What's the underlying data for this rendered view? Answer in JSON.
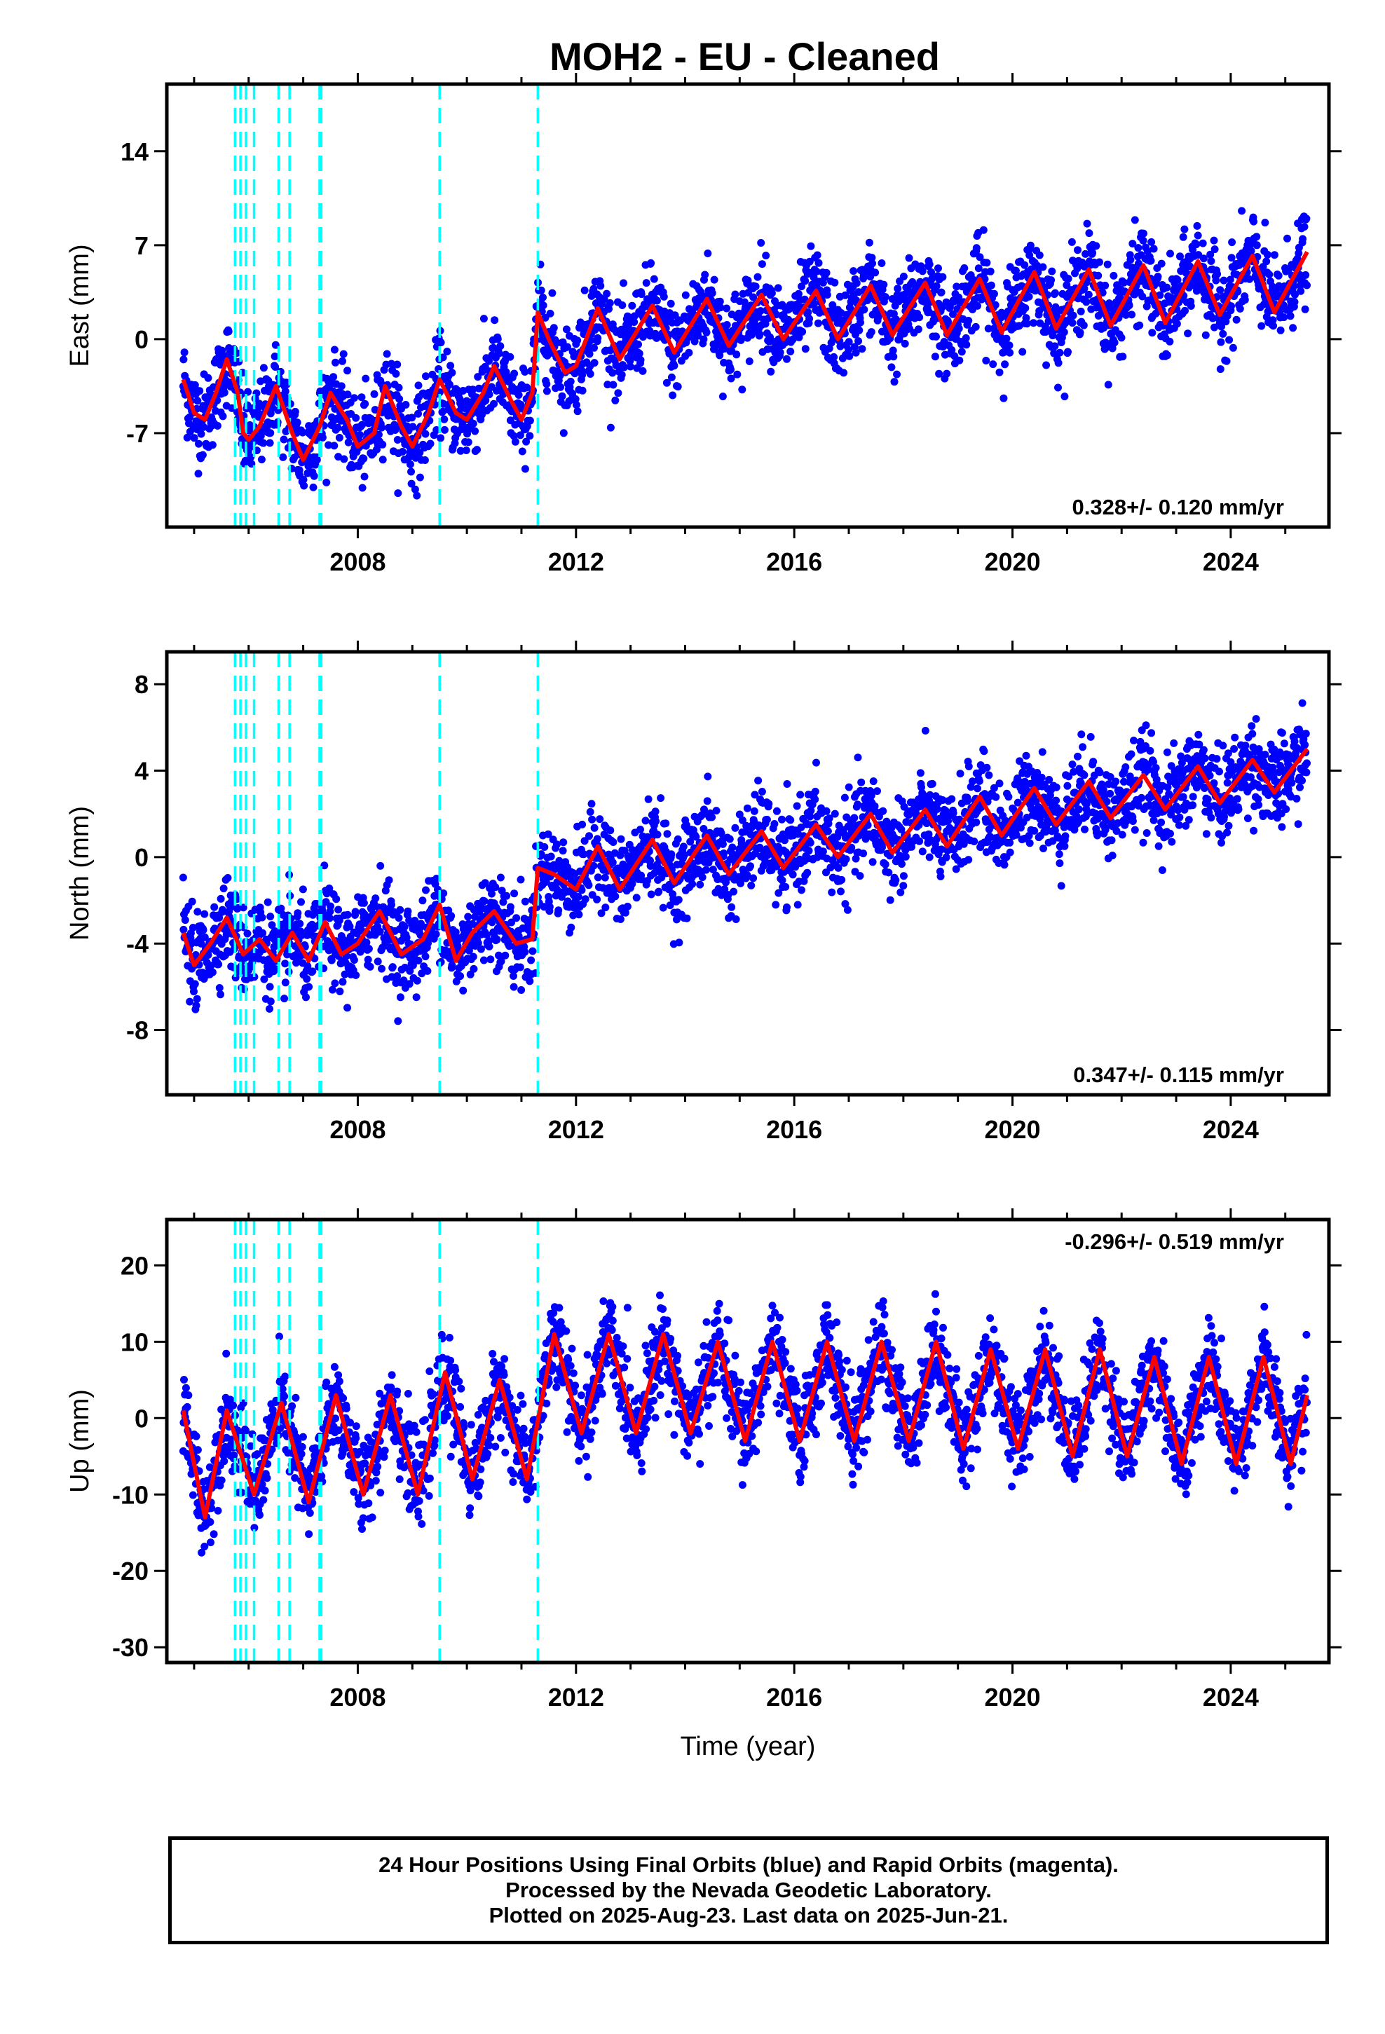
{
  "title": "MOH2  - EU - Cleaned",
  "footer": {
    "line1": "24 Hour Positions Using Final Orbits (blue) and Rapid Orbits (magenta).",
    "line2": "Processed by the Nevada Geodetic Laboratory.",
    "line3": "Plotted on 2025-Aug-23. Last data on 2025-Jun-21."
  },
  "colors": {
    "points": "#0000ff",
    "model": "#ff0000",
    "events": "#00ffff",
    "axes": "#000000"
  },
  "chart_data": [
    {
      "type": "scatter",
      "ylabel": "East (mm)",
      "xlabel": "",
      "xlim": [
        2004.5,
        2025.8
      ],
      "ylim": [
        -14,
        19
      ],
      "x_ticks": [
        2008,
        2012,
        2016,
        2020,
        2024
      ],
      "y_ticks": [
        -7,
        0,
        7,
        14
      ],
      "rate_label": "0.328+/- 0.120 mm/yr",
      "rate_position": "bottom-right",
      "events": [
        2005.75,
        2005.85,
        2005.95,
        2006.1,
        2006.55,
        2006.75,
        2007.3,
        2007.33,
        2009.5,
        2011.3
      ],
      "series": [
        {
          "x": [
            2004.8,
            2005.0,
            2005.2,
            2005.4,
            2005.6,
            2005.8,
            2005.9,
            2006.0,
            2006.2,
            2006.5,
            2006.8,
            2007.0,
            2007.3,
            2007.5,
            2007.8,
            2008.0,
            2008.3,
            2008.5,
            2008.8,
            2009.0,
            2009.3,
            2009.5,
            2009.8,
            2010.0,
            2010.3,
            2010.5,
            2010.8,
            2011.0,
            2011.2,
            2011.3,
            2011.5,
            2011.8,
            2012.0,
            2012.4,
            2012.8,
            2013.4,
            2013.8,
            2014.4,
            2014.8,
            2015.4,
            2015.8,
            2016.4,
            2016.8,
            2017.4,
            2017.8,
            2018.4,
            2018.8,
            2019.4,
            2019.8,
            2020.4,
            2020.8,
            2021.4,
            2021.8,
            2022.4,
            2022.8,
            2023.4,
            2023.8,
            2024.4,
            2024.8,
            2025.4
          ],
          "y": [
            -3,
            -5.5,
            -6,
            -4,
            -1.5,
            -4,
            -7,
            -7.5,
            -6.5,
            -3.5,
            -7,
            -9,
            -6.5,
            -4,
            -6,
            -8,
            -7,
            -3.5,
            -6.5,
            -8,
            -5.5,
            -3,
            -5.5,
            -6,
            -4,
            -2,
            -4.5,
            -6,
            -4,
            2,
            0,
            -2.5,
            -2,
            2.3,
            -1.5,
            2.5,
            -1,
            3,
            -0.5,
            3.3,
            0,
            3.6,
            0,
            4,
            0.3,
            4.2,
            0.3,
            4.5,
            0.5,
            5,
            0.8,
            5.2,
            1,
            5.5,
            1.2,
            5.8,
            1.8,
            6.2,
            2,
            6.5
          ]
        }
      ]
    },
    {
      "type": "scatter",
      "ylabel": "North (mm)",
      "xlabel": "",
      "xlim": [
        2004.5,
        2025.8
      ],
      "ylim": [
        -11,
        9.5
      ],
      "x_ticks": [
        2008,
        2012,
        2016,
        2020,
        2024
      ],
      "y_ticks": [
        -8,
        -4,
        0,
        4,
        8
      ],
      "rate_label": "0.347+/- 0.115 mm/yr",
      "rate_position": "bottom-right",
      "events": [
        2005.75,
        2005.85,
        2005.95,
        2006.1,
        2006.55,
        2006.75,
        2007.3,
        2007.33,
        2009.5,
        2011.3
      ],
      "series": [
        {
          "x": [
            2004.8,
            2005.0,
            2005.3,
            2005.6,
            2005.9,
            2006.2,
            2006.5,
            2006.8,
            2007.1,
            2007.4,
            2007.7,
            2008.0,
            2008.4,
            2008.8,
            2009.2,
            2009.5,
            2009.8,
            2010.1,
            2010.5,
            2010.9,
            2011.2,
            2011.3,
            2011.6,
            2012.0,
            2012.4,
            2012.8,
            2013.4,
            2013.8,
            2014.4,
            2014.8,
            2015.4,
            2015.8,
            2016.4,
            2016.8,
            2017.4,
            2017.8,
            2018.4,
            2018.8,
            2019.4,
            2019.8,
            2020.4,
            2020.8,
            2021.4,
            2021.8,
            2022.4,
            2022.8,
            2023.4,
            2023.8,
            2024.4,
            2024.8,
            2025.4
          ],
          "y": [
            -3.5,
            -5,
            -4,
            -2.8,
            -4.5,
            -3.8,
            -4.8,
            -3.5,
            -4.8,
            -3,
            -4.5,
            -4,
            -2.5,
            -4.5,
            -3.8,
            -2.2,
            -4.8,
            -3.5,
            -2.5,
            -4,
            -3.8,
            -0.5,
            -0.8,
            -1.5,
            0.5,
            -1.5,
            0.8,
            -1.2,
            1,
            -0.8,
            1.2,
            -0.5,
            1.5,
            0,
            2,
            0.2,
            2.2,
            0.5,
            2.8,
            1,
            3.2,
            1.5,
            3.5,
            1.8,
            3.8,
            2.2,
            4.2,
            2.5,
            4.5,
            3,
            5
          ]
        }
      ]
    },
    {
      "type": "scatter",
      "ylabel": "Up (mm)",
      "xlabel": "Time (year)",
      "xlim": [
        2004.5,
        2025.8
      ],
      "ylim": [
        -32,
        26
      ],
      "x_ticks": [
        2008,
        2012,
        2016,
        2020,
        2024
      ],
      "y_ticks": [
        -30,
        -20,
        -10,
        0,
        10,
        20
      ],
      "rate_label": "-0.296+/- 0.519 mm/yr",
      "rate_position": "top-right",
      "events": [
        2005.75,
        2005.85,
        2005.95,
        2006.1,
        2006.55,
        2006.75,
        2007.3,
        2007.33,
        2009.5,
        2011.3
      ],
      "series": [
        {
          "x": [
            2004.8,
            2005.2,
            2005.6,
            2006.1,
            2006.6,
            2007.1,
            2007.6,
            2008.1,
            2008.6,
            2009.1,
            2009.6,
            2010.1,
            2010.6,
            2011.1,
            2011.6,
            2012.1,
            2012.6,
            2013.1,
            2013.6,
            2014.1,
            2014.6,
            2015.1,
            2015.6,
            2016.1,
            2016.6,
            2017.1,
            2017.6,
            2018.1,
            2018.6,
            2019.1,
            2019.6,
            2020.1,
            2020.6,
            2021.1,
            2021.6,
            2022.1,
            2022.6,
            2023.1,
            2023.6,
            2024.1,
            2024.6,
            2025.1,
            2025.4
          ],
          "y": [
            1,
            -13,
            1,
            -10,
            2,
            -11,
            3,
            -10,
            3,
            -10,
            6,
            -8,
            5,
            -8,
            11,
            -2,
            11,
            -2,
            11,
            -2,
            10,
            -3,
            10,
            -3,
            10,
            -3,
            10,
            -3,
            10,
            -4,
            9,
            -4,
            9,
            -5,
            9,
            -5,
            8,
            -6,
            8,
            -6,
            8,
            -6,
            3
          ]
        }
      ]
    }
  ]
}
